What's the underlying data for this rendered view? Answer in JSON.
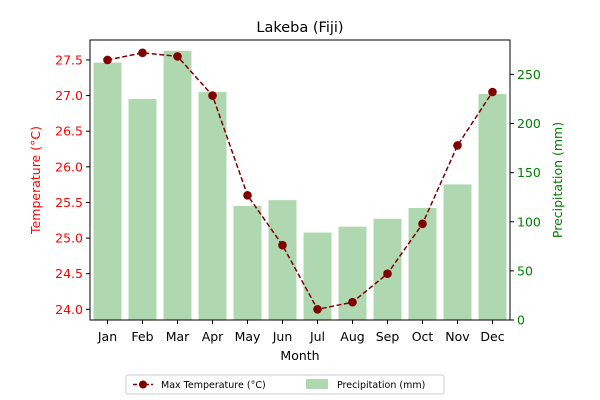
{
  "chart_data": {
    "type": "bar+line",
    "title": "Lakeba (Fiji)",
    "xlabel": "Month",
    "categories": [
      "Jan",
      "Feb",
      "Mar",
      "Apr",
      "May",
      "Jun",
      "Jul",
      "Aug",
      "Sep",
      "Oct",
      "Nov",
      "Dec"
    ],
    "left_axis": {
      "label": "Temperature (°C)",
      "color": "#ff0000",
      "ylim": [
        23.85,
        27.78
      ],
      "ticks": [
        "24.0",
        "24.5",
        "25.0",
        "25.5",
        "26.0",
        "26.5",
        "27.0",
        "27.5"
      ]
    },
    "right_axis": {
      "label": "Precipitation (mm)",
      "color": "#008000",
      "ylim": [
        0,
        285
      ],
      "ticks": [
        "0",
        "50",
        "100",
        "150",
        "200",
        "250"
      ]
    },
    "series": [
      {
        "name": "Max Temperature (°C)",
        "type": "line",
        "axis": "left",
        "color": "#800000",
        "line_style": "dashed",
        "marker": "circle",
        "values": [
          27.5,
          27.6,
          27.55,
          27.0,
          25.6,
          24.9,
          24.0,
          24.1,
          24.5,
          25.2,
          26.3,
          27.05
        ]
      },
      {
        "name": "Precipitation (mm)",
        "type": "bar",
        "axis": "right",
        "color": "#b0d8b0",
        "values": [
          262,
          225,
          274,
          232,
          116,
          122,
          89,
          95,
          103,
          114,
          138,
          230
        ]
      }
    ],
    "legend": {
      "position": "bottom-center",
      "entries": [
        "Max Temperature (°C)",
        "Precipitation (mm)"
      ]
    },
    "grid": false
  }
}
